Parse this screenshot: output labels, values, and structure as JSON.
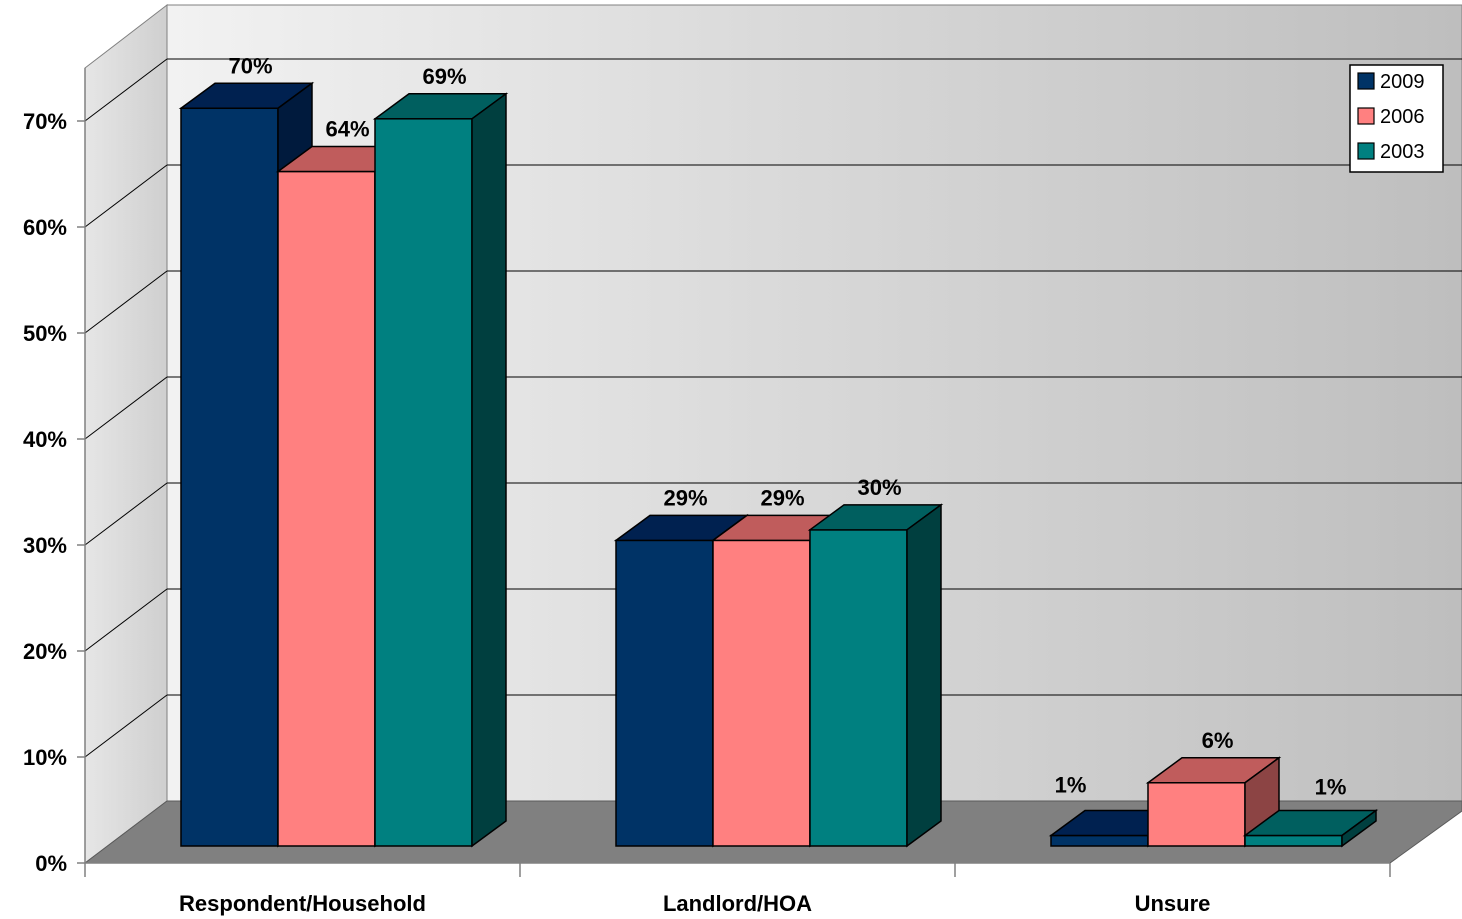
{
  "chart_data": {
    "type": "bar",
    "title": "",
    "xlabel": "",
    "ylabel": "",
    "categories": [
      "Respondent/Household",
      "Landlord/HOA",
      "Unsure"
    ],
    "series": [
      {
        "name": "2009",
        "values": [
          70,
          29,
          1
        ],
        "labels": [
          "70%",
          "29%",
          "1%"
        ]
      },
      {
        "name": "2006",
        "values": [
          64,
          29,
          6
        ],
        "labels": [
          "64%",
          "29%",
          "6%"
        ]
      },
      {
        "name": "2003",
        "values": [
          69,
          30,
          1
        ],
        "labels": [
          "69%",
          "30%",
          "1%"
        ]
      }
    ],
    "ylim": [
      0,
      70
    ],
    "yticks": [
      "0%",
      "10%",
      "20%",
      "30%",
      "40%",
      "50%",
      "60%",
      "70%"
    ],
    "grid": true,
    "legend_position": "top-right",
    "style": "3d-clustered-column",
    "colors": {
      "2009": {
        "front": "#003366",
        "top": "#002150",
        "side": "#001a3d"
      },
      "2006": {
        "front": "#ff8080",
        "top": "#c05c5c",
        "side": "#8c4444"
      },
      "2003": {
        "front": "#008080",
        "top": "#005f5f",
        "side": "#003f3f"
      },
      "floor": "#808080",
      "wall_light": "#f0f0f0",
      "wall_dark": "#bdbdbd"
    }
  }
}
